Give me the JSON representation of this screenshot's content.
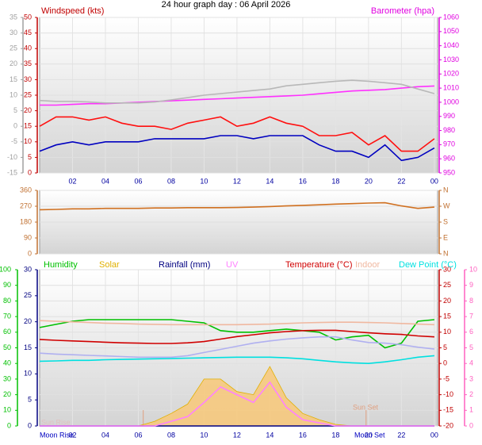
{
  "chart_data": [
    {
      "type": "line",
      "title": "24 hour graph day : 06 April 2026",
      "ylabel": "Windspeed (kts)",
      "y2label": "Barometer (hpa)",
      "x": [
        0,
        1,
        2,
        3,
        4,
        5,
        6,
        7,
        8,
        9,
        10,
        11,
        12,
        13,
        14,
        15,
        16,
        17,
        18,
        19,
        20,
        21,
        22,
        23,
        24
      ],
      "xlim": [
        0,
        24.2
      ],
      "xticks": [
        {
          "value": 2,
          "label": "02"
        },
        {
          "value": 4,
          "label": "04"
        },
        {
          "value": 6,
          "label": "06"
        },
        {
          "value": 8,
          "label": "08"
        },
        10,
        12,
        14,
        16,
        18,
        20,
        22,
        {
          "value": 24,
          "label": "00"
        }
      ],
      "ylim": [
        0,
        50
      ],
      "yticks": [
        0,
        5,
        10,
        15,
        20,
        25,
        30,
        35,
        40,
        45,
        50
      ],
      "y2lim": [
        950,
        1060
      ],
      "y2ticks": [
        950,
        960,
        970,
        980,
        990,
        1000,
        1010,
        1020,
        1030,
        1040,
        1050,
        1060
      ],
      "y3lim": [
        -15,
        35
      ],
      "y3ticks": [
        -15,
        -10,
        -5,
        0,
        5,
        10,
        15,
        20,
        25,
        30,
        35
      ],
      "axis_colors": {
        "y": "#c00000",
        "y2": "#e000e0",
        "y3": "#a0a0a0"
      },
      "grid": true,
      "series": [
        {
          "color": "#ff1010",
          "axis": "y",
          "values": [
            15,
            18,
            18,
            17,
            18,
            16,
            15,
            15,
            14,
            16,
            17,
            18,
            15,
            16,
            18,
            16,
            15,
            12,
            12,
            13,
            9,
            12,
            7,
            7,
            11
          ]
        },
        {
          "color": "#0000c0",
          "axis": "y",
          "values": [
            7,
            9,
            10,
            9,
            10,
            10,
            10,
            11,
            11,
            11,
            11,
            12,
            12,
            11,
            12,
            12,
            12,
            9,
            7,
            7,
            5,
            9,
            4,
            5,
            8
          ]
        },
        {
          "color": "#ff30ff",
          "axis": "y2",
          "values": [
            998,
            998,
            998.5,
            999,
            999,
            999.5,
            1000,
            1000.5,
            1001,
            1001.5,
            1002,
            1002.5,
            1003,
            1003.5,
            1004,
            1004.5,
            1005,
            1006,
            1007,
            1008,
            1008.5,
            1009,
            1010,
            1011,
            1011.5
          ]
        },
        {
          "color": "#b8b8b8",
          "axis": "y3",
          "values": [
            8.3,
            8,
            8,
            7.8,
            7.5,
            7.5,
            7.5,
            7.8,
            8.5,
            9.2,
            10,
            10.5,
            11,
            11.5,
            12,
            13,
            13.5,
            14,
            14.5,
            14.8,
            14.5,
            14,
            13.5,
            12,
            10.5
          ]
        }
      ]
    },
    {
      "type": "line",
      "x": [
        0,
        1,
        2,
        3,
        4,
        5,
        6,
        7,
        8,
        9,
        10,
        11,
        12,
        13,
        14,
        15,
        16,
        17,
        18,
        19,
        20,
        21,
        22,
        23,
        24
      ],
      "xlim": [
        0,
        24.2
      ],
      "ylim": [
        0,
        360
      ],
      "yticks": [
        0,
        90,
        180,
        270,
        360
      ],
      "y2lim": [
        0,
        360
      ],
      "y2ticks": [
        {
          "value": 0,
          "label": "N"
        },
        {
          "value": 90,
          "label": "E"
        },
        {
          "value": 180,
          "label": "S"
        },
        {
          "value": 270,
          "label": "W"
        },
        {
          "value": 360,
          "label": "N"
        }
      ],
      "axis_colors": {
        "y": "#c07030",
        "y2": "#c07030"
      },
      "grid": true,
      "series": [
        {
          "color": "#d07020",
          "axis": "y",
          "values": [
            250,
            252,
            255,
            255,
            258,
            258,
            258,
            260,
            260,
            262,
            262,
            262,
            263,
            265,
            268,
            272,
            275,
            278,
            282,
            285,
            288,
            290,
            272,
            258,
            265
          ]
        }
      ]
    },
    {
      "type": "line",
      "x": [
        0,
        1,
        2,
        3,
        4,
        5,
        6,
        7,
        8,
        9,
        10,
        11,
        12,
        13,
        14,
        15,
        16,
        17,
        18,
        19,
        20,
        21,
        22,
        23,
        24
      ],
      "xlim": [
        0,
        24.2
      ],
      "xticks": [
        {
          "value": 2,
          "label": "02"
        },
        {
          "value": 4,
          "label": "04"
        },
        {
          "value": 6,
          "label": "06"
        },
        {
          "value": 8,
          "label": "08"
        },
        10,
        12,
        14,
        16,
        18,
        20,
        22,
        {
          "value": 24,
          "label": "00"
        }
      ],
      "ylim": [
        0,
        100
      ],
      "yticks": [
        0,
        10,
        20,
        30,
        40,
        50,
        60,
        70,
        80,
        90,
        100
      ],
      "y2lim": [
        0,
        30
      ],
      "y2ticks": [
        0,
        5,
        10,
        15,
        20,
        25,
        30
      ],
      "y3lim": [
        -20,
        30
      ],
      "y3ticks": [
        -20,
        -15,
        -10,
        -5,
        0,
        5,
        10,
        15,
        20,
        25,
        30
      ],
      "y4lim": [
        0,
        10
      ],
      "y4ticks": [
        0,
        1,
        2,
        3,
        4,
        5,
        6,
        7,
        8,
        9,
        10
      ],
      "axis_colors": {
        "y": "#00c000",
        "y2": "#000080",
        "y3": "#c00000",
        "y4": "#ff60c0"
      },
      "grid": true,
      "annotations": [
        "Moon Rise",
        "Sun Rise",
        "Sun Set",
        "Moon Set"
      ],
      "sun_markers": [
        6.3,
        19.85
      ],
      "series": [
        {
          "name": "Humidity",
          "color": "#00c000",
          "axis": "y",
          "values": [
            63,
            65,
            67,
            68,
            68,
            68,
            68,
            68,
            68,
            67,
            66,
            61,
            60,
            60,
            61,
            62,
            61,
            60,
            55,
            57,
            58,
            50,
            53,
            67,
            68
          ]
        },
        {
          "name": "Solar",
          "color": "#e0b000",
          "axis": "y",
          "fill": true,
          "values": [
            0,
            0,
            0,
            0,
            0,
            0,
            0,
            3,
            8,
            14,
            30,
            30,
            22,
            20,
            38,
            18,
            8,
            4,
            1,
            0,
            0,
            0,
            0,
            0,
            0
          ]
        },
        {
          "name": "Rainfall (mm)",
          "color": "#000080",
          "axis": "y2",
          "values": [
            0,
            0,
            0,
            0,
            0,
            0,
            0,
            0,
            0,
            0,
            0,
            0,
            0,
            0,
            0,
            0,
            0,
            0,
            0,
            0,
            0,
            0,
            0,
            0,
            0
          ]
        },
        {
          "name": "UV",
          "color": "#ff80ff",
          "axis": "y4",
          "values": [
            0,
            0,
            0,
            0,
            0,
            0,
            0,
            0,
            0.3,
            0.6,
            1.5,
            2.5,
            2,
            1.5,
            2.8,
            1.2,
            0.4,
            0.2,
            0,
            0,
            0,
            0,
            0,
            0,
            0
          ]
        },
        {
          "name": "Temperature (°C)",
          "color": "#d00000",
          "axis": "y3",
          "values": [
            7.7,
            7.4,
            7.2,
            7,
            6.8,
            6.6,
            6.5,
            6.4,
            6.4,
            6.6,
            7,
            7.8,
            8.6,
            9.2,
            9.8,
            10.2,
            10.5,
            10.6,
            10.6,
            10.2,
            9.8,
            9.5,
            9.3,
            8.8,
            8.5
          ]
        },
        {
          "name": "Indoor",
          "color": "#f0b8a0",
          "axis": "y3",
          "values": [
            13.7,
            13.5,
            13.3,
            13.1,
            12.9,
            12.8,
            12.6,
            12.5,
            12.4,
            12.4,
            12.4,
            12.4,
            12.4,
            12.5,
            12.6,
            12.8,
            13,
            13.1,
            13.2,
            13.2,
            13.1,
            13,
            12.8,
            12.6,
            12.4
          ]
        },
        {
          "name": "Dew Point (°C)",
          "color": "#00e0e0",
          "axis": "y3",
          "values": [
            0.7,
            0.8,
            1,
            1,
            1.2,
            1.3,
            1.4,
            1.5,
            1.6,
            1.7,
            1.8,
            1.9,
            2,
            2,
            2,
            1.8,
            1.5,
            1,
            0.5,
            0.2,
            0,
            0.5,
            1.2,
            2,
            2.5
          ]
        },
        {
          "color": "#b0b0f0",
          "axis": "y3",
          "values": [
            3.3,
            3,
            2.8,
            2.6,
            2.4,
            2.2,
            2,
            2,
            2,
            2.5,
            3.5,
            4.5,
            5.5,
            6.5,
            7.2,
            7.8,
            8.2,
            8.5,
            8.5,
            7.5,
            6.7,
            6.5,
            6,
            5.2,
            4.6
          ]
        }
      ]
    }
  ]
}
